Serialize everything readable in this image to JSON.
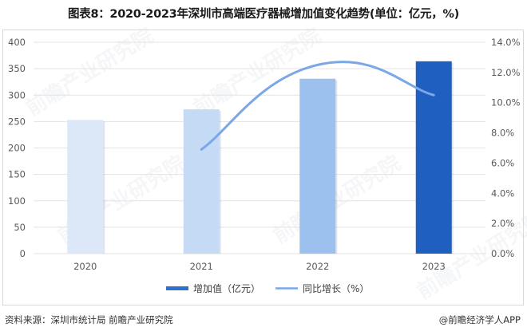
{
  "title": "图表8：2020-2023年深圳市高端医疗器械增加值变化趋势(单位：亿元，%)",
  "chart_data": {
    "type": "bar+line",
    "title": "图表8：2020-2023年深圳市高端医疗器械增加值变化趋势(单位：亿元，%)",
    "categories": [
      "2020",
      "2021",
      "2022",
      "2023"
    ],
    "series": [
      {
        "name": "增加值（亿元）",
        "type": "bar",
        "axis": "left",
        "values": [
          253,
          273,
          331,
          364
        ],
        "colors": [
          "#dce8f8",
          "#c5daf5",
          "#9cc1ee",
          "#1f5fbf"
        ]
      },
      {
        "name": "同比增长（%）",
        "type": "line",
        "axis": "right",
        "values": [
          null,
          6.9,
          12.5,
          10.5
        ],
        "color": "#7aa7e8",
        "smooth": true
      }
    ],
    "left_axis": {
      "ylim": [
        0,
        400
      ],
      "ticks": [
        "0",
        "50",
        "100",
        "150",
        "200",
        "250",
        "300",
        "350",
        "400"
      ]
    },
    "right_axis": {
      "ylim": [
        0,
        14
      ],
      "ticks": [
        "0.0%",
        "2.0%",
        "4.0%",
        "6.0%",
        "8.0%",
        "10.0%",
        "12.0%",
        "14.0%"
      ]
    },
    "grid": true,
    "legend_position": "bottom",
    "xlabel": "",
    "ylabel": ""
  },
  "legend": {
    "bar_label": "增加值（亿元）",
    "line_label": "同比增长（%）"
  },
  "footer": {
    "source": "资料来源：深圳市统计局 前瞻产业研究院",
    "credit": "@前瞻经济学人APP"
  },
  "watermark": "前瞻产业研究院"
}
